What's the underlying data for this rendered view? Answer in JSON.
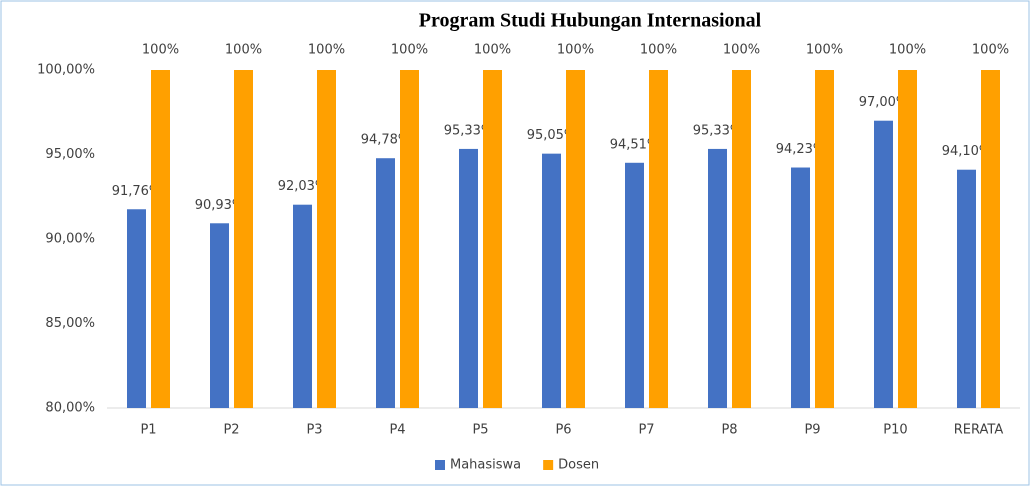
{
  "chart_data": {
    "type": "bar",
    "title": "Program Studi Hubungan Internasional",
    "categories": [
      "P1",
      "P2",
      "P3",
      "P4",
      "P5",
      "P6",
      "P7",
      "P8",
      "P9",
      "P10",
      "RERATA"
    ],
    "series": [
      {
        "name": "Mahasiswa",
        "color": "#4472c4",
        "values": [
          91.76,
          90.93,
          92.03,
          94.78,
          95.33,
          95.05,
          94.51,
          95.33,
          94.23,
          97.0,
          94.1
        ],
        "value_labels": [
          "91,76%",
          "90,93%",
          "92,03%",
          "94,78%",
          "95,33%",
          "95,05%",
          "94,51%",
          "95,33%",
          "94,23%",
          "97,00%",
          "94,10%"
        ]
      },
      {
        "name": "Dosen",
        "color": "#ffa000",
        "values": [
          100,
          100,
          100,
          100,
          100,
          100,
          100,
          100,
          100,
          100,
          100
        ],
        "value_labels": [
          "100%",
          "100%",
          "100%",
          "100%",
          "100%",
          "100%",
          "100%",
          "100%",
          "100%",
          "100%",
          "100%"
        ]
      }
    ],
    "ylim": [
      80,
      100
    ],
    "yticks": [
      {
        "value": 80,
        "label": "80,00%"
      },
      {
        "value": 85,
        "label": "85,00%"
      },
      {
        "value": 90,
        "label": "90,00%"
      },
      {
        "value": 95,
        "label": "95,00%"
      },
      {
        "value": 100,
        "label": "100,00%"
      }
    ],
    "grid": false,
    "legend": "bottom"
  }
}
